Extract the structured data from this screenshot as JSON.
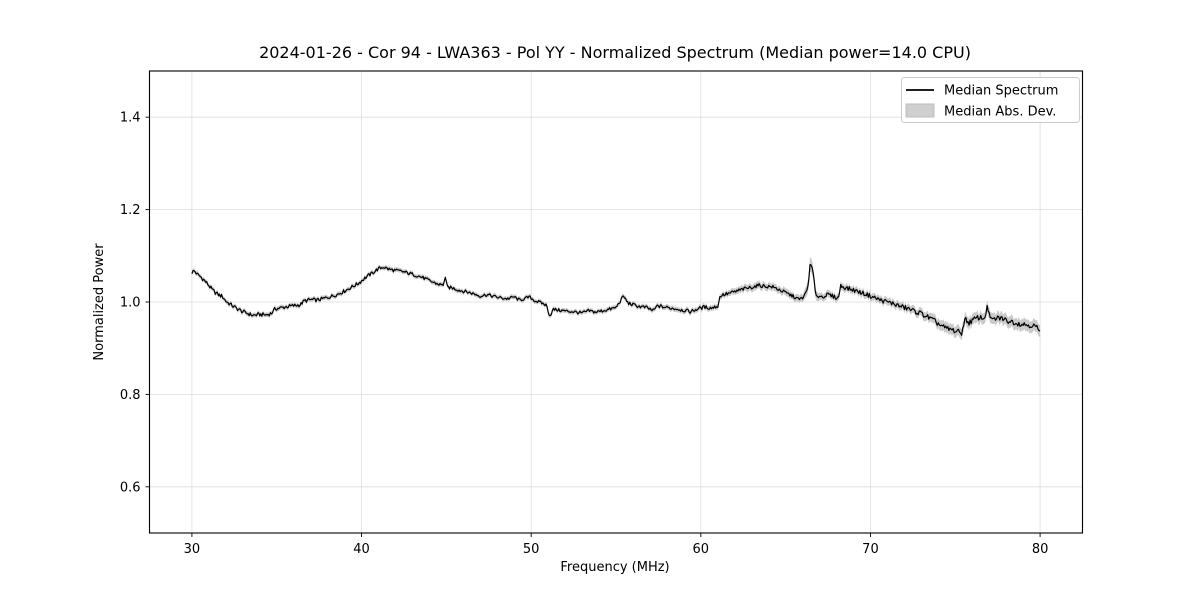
{
  "figure": {
    "background": "#ffffff"
  },
  "chart_data": {
    "type": "line",
    "title": "2024-01-26 - Cor 94 - LWA363 - Pol YY - Normalized Spectrum (Median power=14.0 CPU)",
    "xlabel": "Frequency (MHz)",
    "ylabel": "Normalized Power",
    "xlim": [
      27.5,
      82.5
    ],
    "ylim": [
      0.5,
      1.5
    ],
    "grid": true,
    "grid_color": "#dedede",
    "axis_color": "#000000",
    "xticks": [
      {
        "v": 30,
        "label": "30"
      },
      {
        "v": 40,
        "label": "40"
      },
      {
        "v": 50,
        "label": "50"
      },
      {
        "v": 60,
        "label": "60"
      },
      {
        "v": 70,
        "label": "70"
      },
      {
        "v": 80,
        "label": "80"
      }
    ],
    "yticks": [
      {
        "v": 0.6,
        "label": "0.6"
      },
      {
        "v": 0.8,
        "label": "0.8"
      },
      {
        "v": 1.0,
        "label": "1.0"
      },
      {
        "v": 1.2,
        "label": "1.2"
      },
      {
        "v": 1.4,
        "label": "1.4"
      }
    ],
    "legend": {
      "position": "upper right",
      "entries": [
        {
          "label": "Median Spectrum",
          "type": "line",
          "color": "#000000"
        },
        {
          "label": "Median Abs. Dev.",
          "type": "patch",
          "color": "#cfcfcf"
        }
      ]
    },
    "series": [
      {
        "name": "Median Spectrum",
        "color": "#000000",
        "anchors": [
          [
            30.0,
            1.064
          ],
          [
            30.15,
            1.068
          ],
          [
            30.3,
            1.06
          ],
          [
            30.5,
            1.055
          ],
          [
            30.7,
            1.048
          ],
          [
            31.0,
            1.036
          ],
          [
            31.2,
            1.026
          ],
          [
            31.4,
            1.02
          ],
          [
            31.6,
            1.015
          ],
          [
            31.8,
            1.012
          ],
          [
            32.0,
            1.002
          ],
          [
            32.3,
            0.994
          ],
          [
            32.6,
            0.987
          ],
          [
            33.0,
            0.979
          ],
          [
            33.3,
            0.975
          ],
          [
            33.6,
            0.971
          ],
          [
            34.0,
            0.973
          ],
          [
            34.4,
            0.972
          ],
          [
            34.7,
            0.976
          ],
          [
            34.9,
            0.985
          ],
          [
            35.2,
            0.987
          ],
          [
            35.6,
            0.99
          ],
          [
            36.0,
            0.992
          ],
          [
            36.4,
            0.994
          ],
          [
            36.6,
            1.002
          ],
          [
            37.0,
            1.005
          ],
          [
            37.4,
            1.004
          ],
          [
            37.8,
            1.008
          ],
          [
            38.2,
            1.012
          ],
          [
            38.6,
            1.017
          ],
          [
            39.0,
            1.024
          ],
          [
            39.4,
            1.032
          ],
          [
            39.8,
            1.04
          ],
          [
            40.2,
            1.052
          ],
          [
            40.6,
            1.062
          ],
          [
            41.0,
            1.072
          ],
          [
            41.3,
            1.076
          ],
          [
            41.6,
            1.071
          ],
          [
            42.0,
            1.068
          ],
          [
            42.4,
            1.066
          ],
          [
            42.8,
            1.062
          ],
          [
            43.2,
            1.058
          ],
          [
            43.6,
            1.053
          ],
          [
            44.0,
            1.046
          ],
          [
            44.4,
            1.04
          ],
          [
            44.8,
            1.036
          ],
          [
            44.93,
            1.054
          ],
          [
            45.05,
            1.032
          ],
          [
            45.4,
            1.03
          ],
          [
            45.8,
            1.025
          ],
          [
            46.2,
            1.022
          ],
          [
            46.6,
            1.018
          ],
          [
            47.0,
            1.013
          ],
          [
            47.4,
            1.016
          ],
          [
            47.8,
            1.012
          ],
          [
            48.2,
            1.009
          ],
          [
            48.6,
            1.007
          ],
          [
            49.0,
            1.011
          ],
          [
            49.3,
            1.004
          ],
          [
            49.6,
            1.007
          ],
          [
            49.9,
            1.011
          ],
          [
            50.2,
            1.003
          ],
          [
            50.6,
            0.998
          ],
          [
            50.9,
            0.993
          ],
          [
            51.1,
            0.969
          ],
          [
            51.3,
            0.984
          ],
          [
            51.7,
            0.982
          ],
          [
            52.1,
            0.98
          ],
          [
            52.5,
            0.979
          ],
          [
            53.0,
            0.976
          ],
          [
            53.4,
            0.981
          ],
          [
            53.8,
            0.978
          ],
          [
            54.2,
            0.981
          ],
          [
            54.6,
            0.984
          ],
          [
            55.0,
            0.988
          ],
          [
            55.45,
            1.013
          ],
          [
            55.7,
            0.998
          ],
          [
            56.0,
            0.994
          ],
          [
            56.4,
            0.99
          ],
          [
            56.8,
            0.988
          ],
          [
            57.2,
            0.981
          ],
          [
            57.45,
            0.992
          ],
          [
            57.8,
            0.989
          ],
          [
            58.2,
            0.987
          ],
          [
            58.6,
            0.985
          ],
          [
            59.0,
            0.982
          ],
          [
            59.4,
            0.979
          ],
          [
            59.8,
            0.985
          ],
          [
            60.2,
            0.989
          ],
          [
            60.6,
            0.987
          ],
          [
            61.0,
            0.991
          ],
          [
            61.15,
            1.014
          ],
          [
            61.5,
            1.017
          ],
          [
            62.0,
            1.022
          ],
          [
            62.5,
            1.028
          ],
          [
            63.0,
            1.032
          ],
          [
            63.4,
            1.036
          ],
          [
            63.8,
            1.034
          ],
          [
            64.2,
            1.033
          ],
          [
            64.6,
            1.027
          ],
          [
            65.0,
            1.02
          ],
          [
            65.4,
            1.013
          ],
          [
            65.8,
            1.005
          ],
          [
            66.1,
            1.012
          ],
          [
            66.3,
            1.03
          ],
          [
            66.45,
            1.082
          ],
          [
            66.6,
            1.07
          ],
          [
            66.75,
            1.02
          ],
          [
            66.9,
            1.012
          ],
          [
            67.2,
            1.012
          ],
          [
            67.5,
            1.016
          ],
          [
            67.8,
            1.012
          ],
          [
            68.1,
            1.008
          ],
          [
            68.25,
            1.035
          ],
          [
            68.6,
            1.03
          ],
          [
            69.0,
            1.026
          ],
          [
            69.4,
            1.021
          ],
          [
            69.8,
            1.016
          ],
          [
            70.2,
            1.01
          ],
          [
            70.6,
            1.004
          ],
          [
            71.0,
            1.0
          ],
          [
            71.4,
            0.996
          ],
          [
            71.8,
            0.99
          ],
          [
            72.2,
            0.986
          ],
          [
            72.6,
            0.98
          ],
          [
            73.0,
            0.975
          ],
          [
            73.4,
            0.967
          ],
          [
            73.8,
            0.958
          ],
          [
            74.2,
            0.948
          ],
          [
            74.5,
            0.942
          ],
          [
            74.8,
            0.94
          ],
          [
            75.1,
            0.936
          ],
          [
            75.4,
            0.933
          ],
          [
            75.55,
            0.964
          ],
          [
            75.8,
            0.955
          ],
          [
            76.1,
            0.962
          ],
          [
            76.4,
            0.967
          ],
          [
            76.7,
            0.964
          ],
          [
            76.9,
            0.99
          ],
          [
            77.1,
            0.96
          ],
          [
            77.4,
            0.964
          ],
          [
            77.7,
            0.966
          ],
          [
            78.0,
            0.96
          ],
          [
            78.4,
            0.957
          ],
          [
            78.8,
            0.953
          ],
          [
            79.2,
            0.951
          ],
          [
            79.6,
            0.949
          ],
          [
            79.85,
            0.944
          ],
          [
            80.0,
            0.932
          ]
        ]
      },
      {
        "name": "Median Abs. Dev.",
        "color": "#bdbdbd",
        "band_halfwidth": [
          [
            30,
            0.005
          ],
          [
            45,
            0.005
          ],
          [
            55,
            0.005
          ],
          [
            61,
            0.006
          ],
          [
            63,
            0.008
          ],
          [
            66,
            0.008
          ],
          [
            66.45,
            0.016
          ],
          [
            67,
            0.008
          ],
          [
            70,
            0.008
          ],
          [
            73,
            0.009
          ],
          [
            74.5,
            0.012
          ],
          [
            77,
            0.012
          ],
          [
            80,
            0.013
          ]
        ]
      }
    ],
    "noise": {
      "amplitude_profile": [
        [
          30,
          0.0045
        ],
        [
          40,
          0.004
        ],
        [
          50,
          0.0035
        ],
        [
          60,
          0.004
        ],
        [
          66,
          0.004
        ],
        [
          70,
          0.005
        ],
        [
          74,
          0.006
        ],
        [
          80,
          0.006
        ]
      ],
      "points_per_mhz": 16
    }
  }
}
